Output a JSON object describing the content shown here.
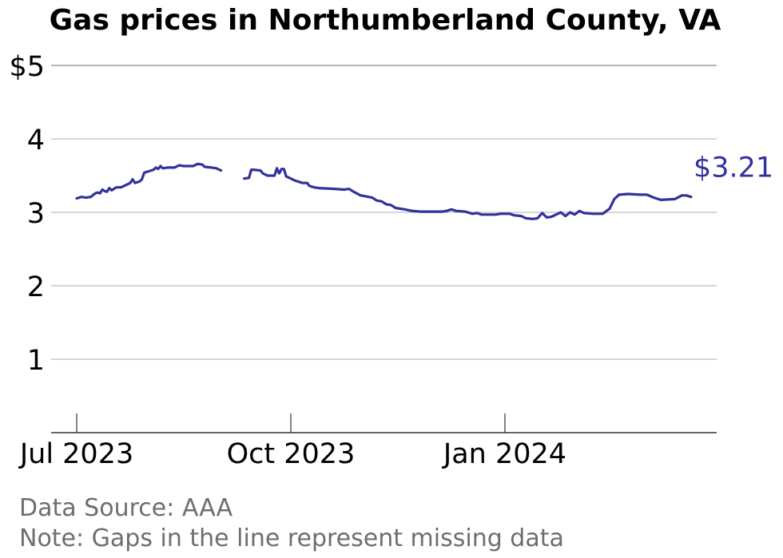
{
  "chart_data": {
    "type": "line",
    "title": "Gas prices in Northumberland County, VA",
    "xlabel": "",
    "ylabel": "",
    "ylim": [
      0,
      5
    ],
    "y_ticks": [
      {
        "value": 5,
        "label": "$5"
      },
      {
        "value": 4,
        "label": "4"
      },
      {
        "value": 3,
        "label": "3"
      },
      {
        "value": 2,
        "label": "2"
      },
      {
        "value": 1,
        "label": "1"
      }
    ],
    "x_ticks": [
      {
        "date": "2023-07-01",
        "label": "Jul 2023"
      },
      {
        "date": "2023-10-01",
        "label": "Oct 2023"
      },
      {
        "date": "2024-01-01",
        "label": "Jan 2024"
      }
    ],
    "xlim": [
      "2023-06-20",
      "2024-04-01"
    ],
    "grid": true,
    "line_color": "#34319a",
    "end_label": "$3.21",
    "series": [
      {
        "segments": [
          [
            [
              "2023-07-01",
              3.19
            ],
            [
              "2023-07-03",
              3.21
            ],
            [
              "2023-07-05",
              3.2
            ],
            [
              "2023-07-07",
              3.21
            ],
            [
              "2023-07-09",
              3.26
            ],
            [
              "2023-07-10",
              3.27
            ],
            [
              "2023-07-11",
              3.26
            ],
            [
              "2023-07-12",
              3.31
            ],
            [
              "2023-07-13",
              3.29
            ],
            [
              "2023-07-14",
              3.28
            ],
            [
              "2023-07-15",
              3.33
            ],
            [
              "2023-07-16",
              3.3
            ],
            [
              "2023-07-18",
              3.34
            ],
            [
              "2023-07-20",
              3.34
            ],
            [
              "2023-07-22",
              3.37
            ],
            [
              "2023-07-24",
              3.4
            ],
            [
              "2023-07-25",
              3.45
            ],
            [
              "2023-07-26",
              3.4
            ],
            [
              "2023-07-28",
              3.42
            ],
            [
              "2023-07-29",
              3.45
            ],
            [
              "2023-07-30",
              3.54
            ],
            [
              "2023-08-01",
              3.56
            ],
            [
              "2023-08-03",
              3.58
            ],
            [
              "2023-08-04",
              3.61
            ],
            [
              "2023-08-05",
              3.59
            ],
            [
              "2023-08-06",
              3.63
            ],
            [
              "2023-08-07",
              3.6
            ],
            [
              "2023-08-09",
              3.61
            ],
            [
              "2023-08-12",
              3.61
            ],
            [
              "2023-08-14",
              3.64
            ],
            [
              "2023-08-16",
              3.63
            ],
            [
              "2023-08-20",
              3.63
            ],
            [
              "2023-08-22",
              3.66
            ],
            [
              "2023-08-24",
              3.65
            ],
            [
              "2023-08-25",
              3.62
            ],
            [
              "2023-08-28",
              3.61
            ],
            [
              "2023-08-30",
              3.6
            ],
            [
              "2023-09-01",
              3.57
            ]
          ],
          [
            [
              "2023-09-11",
              3.46
            ],
            [
              "2023-09-13",
              3.47
            ],
            [
              "2023-09-14",
              3.58
            ],
            [
              "2023-09-15",
              3.58
            ],
            [
              "2023-09-18",
              3.57
            ],
            [
              "2023-09-19",
              3.53
            ],
            [
              "2023-09-21",
              3.5
            ],
            [
              "2023-09-24",
              3.5
            ],
            [
              "2023-09-25",
              3.6
            ],
            [
              "2023-09-26",
              3.53
            ],
            [
              "2023-09-27",
              3.59
            ],
            [
              "2023-09-28",
              3.59
            ],
            [
              "2023-09-29",
              3.49
            ],
            [
              "2023-10-01",
              3.46
            ],
            [
              "2023-10-03",
              3.43
            ],
            [
              "2023-10-06",
              3.4
            ],
            [
              "2023-10-08",
              3.4
            ],
            [
              "2023-10-09",
              3.36
            ],
            [
              "2023-10-11",
              3.34
            ],
            [
              "2023-10-13",
              3.33
            ],
            [
              "2023-10-20",
              3.32
            ],
            [
              "2023-10-24",
              3.31
            ],
            [
              "2023-10-26",
              3.32
            ],
            [
              "2023-10-28",
              3.28
            ],
            [
              "2023-10-31",
              3.23
            ],
            [
              "2023-11-02",
              3.22
            ],
            [
              "2023-11-05",
              3.2
            ],
            [
              "2023-11-07",
              3.16
            ],
            [
              "2023-11-09",
              3.15
            ],
            [
              "2023-11-11",
              3.11
            ],
            [
              "2023-11-13",
              3.1
            ],
            [
              "2023-11-15",
              3.06
            ],
            [
              "2023-11-19",
              3.04
            ],
            [
              "2023-11-22",
              3.02
            ],
            [
              "2023-11-26",
              3.01
            ],
            [
              "2023-12-05",
              3.01
            ],
            [
              "2023-12-07",
              3.02
            ],
            [
              "2023-12-09",
              3.04
            ],
            [
              "2023-12-11",
              3.02
            ],
            [
              "2023-12-15",
              3.01
            ],
            [
              "2023-12-18",
              2.98
            ],
            [
              "2023-12-20",
              2.99
            ],
            [
              "2023-12-22",
              2.97
            ],
            [
              "2023-12-28",
              2.97
            ],
            [
              "2023-12-30",
              2.98
            ],
            [
              "2024-01-03",
              2.98
            ],
            [
              "2024-01-05",
              2.96
            ],
            [
              "2024-01-08",
              2.95
            ],
            [
              "2024-01-10",
              2.92
            ],
            [
              "2024-01-13",
              2.91
            ],
            [
              "2024-01-15",
              2.92
            ],
            [
              "2024-01-17",
              2.99
            ],
            [
              "2024-01-19",
              2.93
            ],
            [
              "2024-01-21",
              2.94
            ],
            [
              "2024-01-23",
              2.97
            ],
            [
              "2024-01-25",
              3.0
            ],
            [
              "2024-01-27",
              2.95
            ],
            [
              "2024-01-29",
              3.0
            ],
            [
              "2024-01-31",
              2.97
            ],
            [
              "2024-02-02",
              3.02
            ],
            [
              "2024-02-04",
              2.99
            ],
            [
              "2024-02-08",
              2.98
            ],
            [
              "2024-02-12",
              2.98
            ],
            [
              "2024-02-15",
              3.05
            ],
            [
              "2024-02-17",
              3.18
            ],
            [
              "2024-02-19",
              3.24
            ],
            [
              "2024-02-23",
              3.25
            ],
            [
              "2024-02-28",
              3.24
            ],
            [
              "2024-03-02",
              3.24
            ],
            [
              "2024-03-05",
              3.2
            ],
            [
              "2024-03-08",
              3.17
            ],
            [
              "2024-03-14",
              3.18
            ],
            [
              "2024-03-17",
              3.23
            ],
            [
              "2024-03-19",
              3.23
            ],
            [
              "2024-03-21",
              3.21
            ]
          ]
        ]
      }
    ]
  },
  "footer": {
    "source": "Data Source: AAA",
    "note": "Note: Gaps in the line represent missing data"
  }
}
